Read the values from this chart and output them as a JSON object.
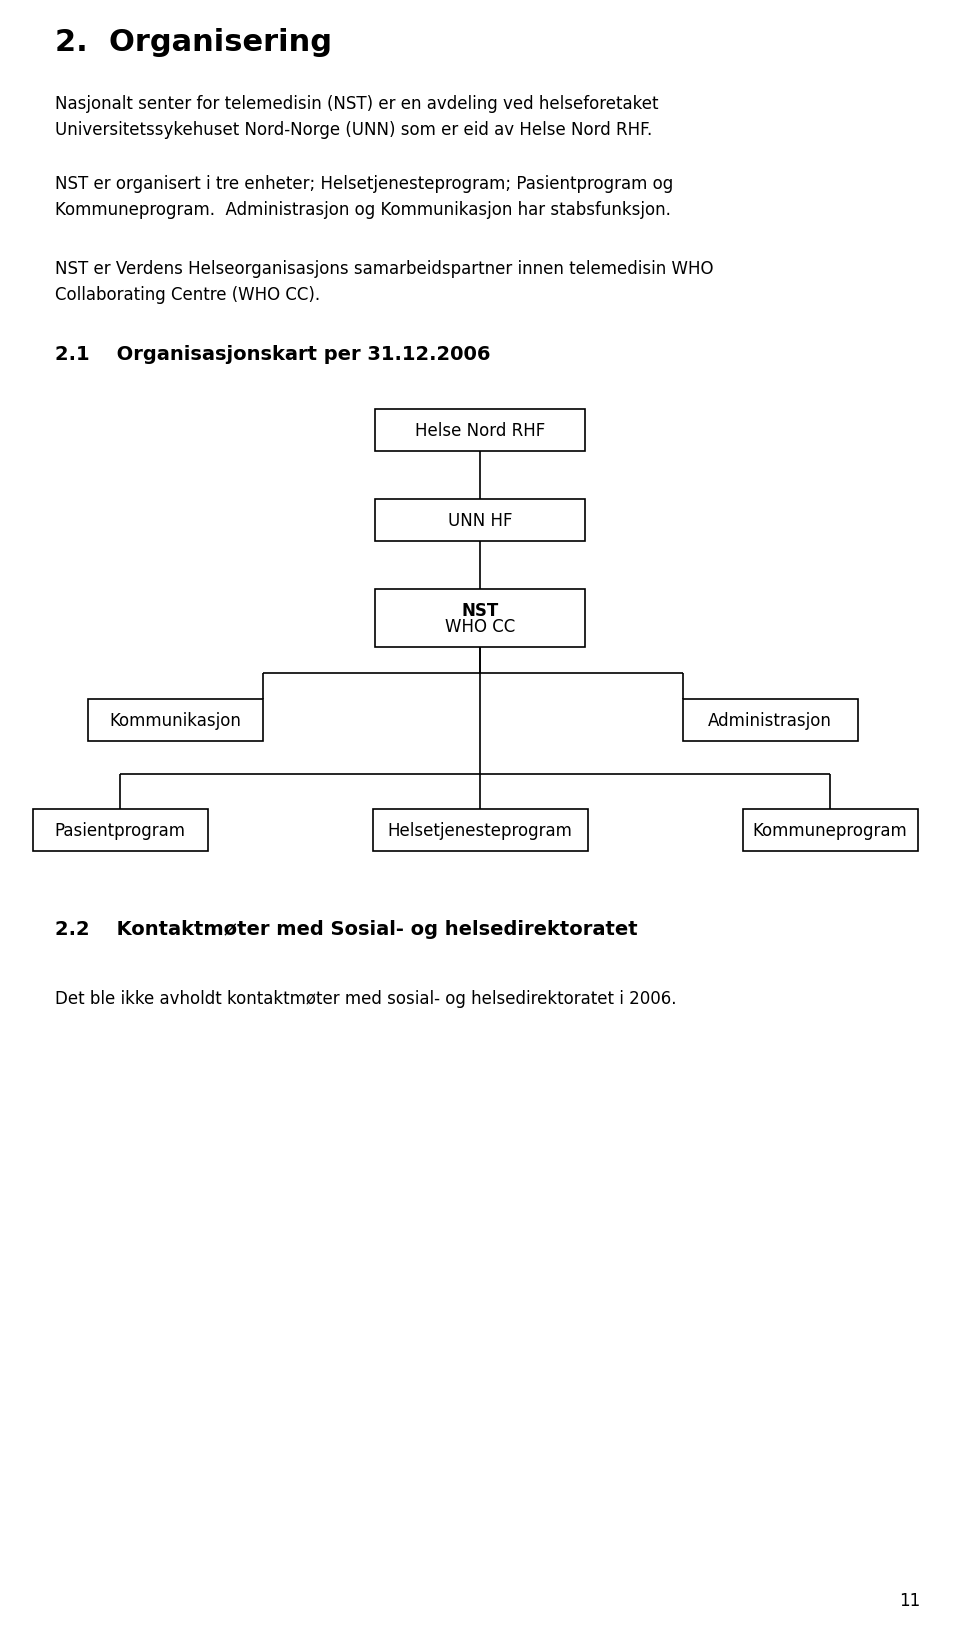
{
  "title": "2.  Organisering",
  "para1": "Nasjonalt senter for telemedisin (NST) er en avdeling ved helseforetaket\nUniversitetssykehuset Nord-Norge (UNN) som er eid av Helse Nord RHF.",
  "para2": "NST er organisert i tre enheter; Helsetjenesteprogram; Pasientprogram og\nKommuneprogram.  Administrasjon og Kommunikasjon har stabsfunksjon.",
  "para3": "NST er Verdens Helseorganisasjons samarbeidspartner innen telemedisin WHO\nCollaborating Centre (WHO CC).",
  "section21": "2.1    Organisasjonskart per 31.12.2006",
  "section22": "2.2    Kontaktmøter med Sosial- og helsedirektoratet",
  "para_bottom": "Det ble ikke avholdt kontaktmøter med sosial- og helsedirektoratet i 2006.",
  "page_number": "11",
  "boxes": {
    "helse_nord_rhf": "Helse Nord RHF",
    "unn_hf": "UNN HF",
    "nst_line1": "NST",
    "nst_line2": "WHO CC",
    "kommunikasjon": "Kommunikasjon",
    "administrasjon": "Administrasjon",
    "pasientprogram": "Pasientprogram",
    "helsetjenesteprogram": "Helsetjenesteprogram",
    "kommuneprogram": "Kommuneprogram"
  },
  "bg_color": "#ffffff",
  "text_color": "#000000",
  "box_edge_color": "#000000"
}
